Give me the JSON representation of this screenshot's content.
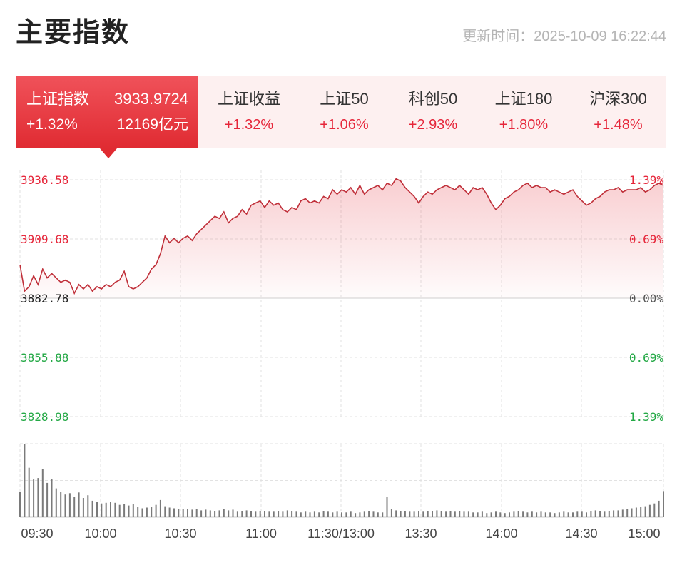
{
  "header": {
    "title": "主要指数",
    "update_label": "更新时间：",
    "update_time": "2025-10-09 16:22:44"
  },
  "tabs": [
    {
      "name": "上证指数",
      "value": "3933.9724",
      "change": "+1.32%",
      "amount": "12169亿元",
      "active": true
    },
    {
      "name": "上证收益",
      "change": "+1.32%"
    },
    {
      "name": "上证50",
      "change": "+1.06%"
    },
    {
      "name": "科创50",
      "change": "+2.93%"
    },
    {
      "name": "上证180",
      "change": "+1.80%"
    },
    {
      "name": "沪深300",
      "change": "+1.48%"
    }
  ],
  "colors": {
    "up": "#e6263a",
    "down": "#23a845",
    "line": "#c0303a",
    "neutral": "#222222",
    "tab_active": "#e02b32",
    "tab_bg": "#fdf0f0",
    "volume": "#7a7a7a"
  },
  "chart_data": {
    "type": "line",
    "base": 3882.78,
    "y_tick_labels": [
      "3936.58",
      "3909.68",
      "3882.78",
      "3855.88",
      "3828.98"
    ],
    "pct_tick_labels": [
      "1.39%",
      "0.69%",
      "0.00%",
      "0.69%",
      "1.39%"
    ],
    "x_tick_labels": [
      "09:30",
      "10:00",
      "10:30",
      "11:00",
      "11:30/13:00",
      "13:30",
      "14:00",
      "14:30",
      "15:00"
    ],
    "ylim": [
      3828.98,
      3936.58
    ],
    "price_points": [
      [
        0,
        3898
      ],
      [
        1,
        3886
      ],
      [
        2,
        3888
      ],
      [
        3,
        3893
      ],
      [
        4,
        3889
      ],
      [
        5,
        3896
      ],
      [
        6,
        3892
      ],
      [
        7,
        3894
      ],
      [
        8,
        3892
      ],
      [
        9,
        3890
      ],
      [
        10,
        3891
      ],
      [
        11,
        3890
      ],
      [
        12,
        3885
      ],
      [
        13,
        3889
      ],
      [
        14,
        3887
      ],
      [
        15,
        3889
      ],
      [
        16,
        3886
      ],
      [
        17,
        3888
      ],
      [
        18,
        3887
      ],
      [
        19,
        3889
      ],
      [
        20,
        3888
      ],
      [
        21,
        3890
      ],
      [
        22,
        3891
      ],
      [
        23,
        3895
      ],
      [
        24,
        3888
      ],
      [
        25,
        3887
      ],
      [
        26,
        3888
      ],
      [
        27,
        3890
      ],
      [
        28,
        3892
      ],
      [
        29,
        3896
      ],
      [
        30,
        3898
      ],
      [
        31,
        3903
      ],
      [
        32,
        3911
      ],
      [
        33,
        3908
      ],
      [
        34,
        3910
      ],
      [
        35,
        3908
      ],
      [
        36,
        3910
      ],
      [
        37,
        3911
      ],
      [
        38,
        3909
      ],
      [
        39,
        3912
      ],
      [
        40,
        3914
      ],
      [
        41,
        3916
      ],
      [
        42,
        3918
      ],
      [
        43,
        3920
      ],
      [
        44,
        3919
      ],
      [
        45,
        3922
      ],
      [
        46,
        3917
      ],
      [
        47,
        3919
      ],
      [
        48,
        3920
      ],
      [
        49,
        3923
      ],
      [
        50,
        3921
      ],
      [
        51,
        3925
      ],
      [
        52,
        3926
      ],
      [
        53,
        3927
      ],
      [
        54,
        3924
      ],
      [
        55,
        3927
      ],
      [
        56,
        3925
      ],
      [
        57,
        3926
      ],
      [
        58,
        3923
      ],
      [
        59,
        3922
      ],
      [
        60,
        3924
      ],
      [
        61,
        3923
      ],
      [
        62,
        3927
      ],
      [
        63,
        3928
      ],
      [
        64,
        3926
      ],
      [
        65,
        3927
      ],
      [
        66,
        3926
      ],
      [
        67,
        3929
      ],
      [
        68,
        3928
      ],
      [
        69,
        3932
      ],
      [
        70,
        3930
      ],
      [
        71,
        3932
      ],
      [
        72,
        3931
      ],
      [
        73,
        3933
      ],
      [
        74,
        3930
      ],
      [
        75,
        3934
      ],
      [
        76,
        3930
      ],
      [
        77,
        3932
      ],
      [
        78,
        3933
      ],
      [
        79,
        3934
      ],
      [
        80,
        3932
      ],
      [
        81,
        3935
      ],
      [
        82,
        3934
      ],
      [
        83,
        3937
      ],
      [
        84,
        3936
      ],
      [
        85,
        3933
      ],
      [
        86,
        3931
      ],
      [
        87,
        3929
      ],
      [
        88,
        3926
      ],
      [
        89,
        3929
      ],
      [
        90,
        3931
      ],
      [
        91,
        3930
      ],
      [
        92,
        3932
      ],
      [
        93,
        3933
      ],
      [
        94,
        3934
      ],
      [
        95,
        3933
      ],
      [
        96,
        3932
      ],
      [
        97,
        3934
      ],
      [
        98,
        3932
      ],
      [
        99,
        3930
      ],
      [
        100,
        3933
      ],
      [
        101,
        3932
      ],
      [
        102,
        3933
      ],
      [
        103,
        3930
      ],
      [
        104,
        3926
      ],
      [
        105,
        3923
      ],
      [
        106,
        3925
      ],
      [
        107,
        3928
      ],
      [
        108,
        3929
      ],
      [
        109,
        3931
      ],
      [
        110,
        3932
      ],
      [
        111,
        3934
      ],
      [
        112,
        3935
      ],
      [
        113,
        3933
      ],
      [
        114,
        3934
      ],
      [
        115,
        3933
      ],
      [
        116,
        3933
      ],
      [
        117,
        3931
      ],
      [
        118,
        3932
      ],
      [
        119,
        3931
      ],
      [
        120,
        3930
      ],
      [
        121,
        3931
      ],
      [
        122,
        3932
      ],
      [
        123,
        3929
      ],
      [
        124,
        3927
      ],
      [
        125,
        3925
      ],
      [
        126,
        3926
      ],
      [
        127,
        3928
      ],
      [
        128,
        3929
      ],
      [
        129,
        3931
      ],
      [
        130,
        3932
      ],
      [
        131,
        3932
      ],
      [
        132,
        3933
      ],
      [
        133,
        3931
      ],
      [
        134,
        3932
      ],
      [
        135,
        3932
      ],
      [
        136,
        3932
      ],
      [
        137,
        3933
      ],
      [
        138,
        3931
      ],
      [
        139,
        3932
      ],
      [
        140,
        3934
      ],
      [
        141,
        3935
      ],
      [
        142,
        3934
      ]
    ],
    "volume_max": 107,
    "volume": [
      37,
      107,
      72,
      55,
      57,
      70,
      50,
      56,
      42,
      37,
      33,
      35,
      30,
      36,
      28,
      32,
      24,
      22,
      20,
      21,
      22,
      21,
      18,
      19,
      17,
      19,
      15,
      13,
      14,
      15,
      18,
      25,
      16,
      14,
      13,
      12,
      12,
      12,
      11,
      12,
      10,
      11,
      10,
      9,
      10,
      12,
      10,
      11,
      8,
      9,
      10,
      9,
      8,
      9,
      9,
      8,
      8,
      9,
      8,
      10,
      9,
      8,
      7,
      8,
      7,
      8,
      7,
      9,
      8,
      7,
      8,
      7,
      7,
      8,
      6,
      7,
      8,
      9,
      8,
      7,
      7,
      30,
      12,
      10,
      9,
      9,
      8,
      8,
      9,
      8,
      9,
      9,
      10,
      9,
      8,
      9,
      8,
      9,
      8,
      8,
      7,
      7,
      8,
      6,
      7,
      8,
      7,
      6,
      7,
      8,
      9,
      8,
      7,
      8,
      7,
      8,
      7,
      7,
      6,
      7,
      8,
      7,
      7,
      8,
      8,
      7,
      9,
      10,
      9,
      8,
      9,
      10,
      10,
      11,
      12,
      13,
      14,
      15,
      16,
      18,
      20,
      24,
      38
    ]
  }
}
